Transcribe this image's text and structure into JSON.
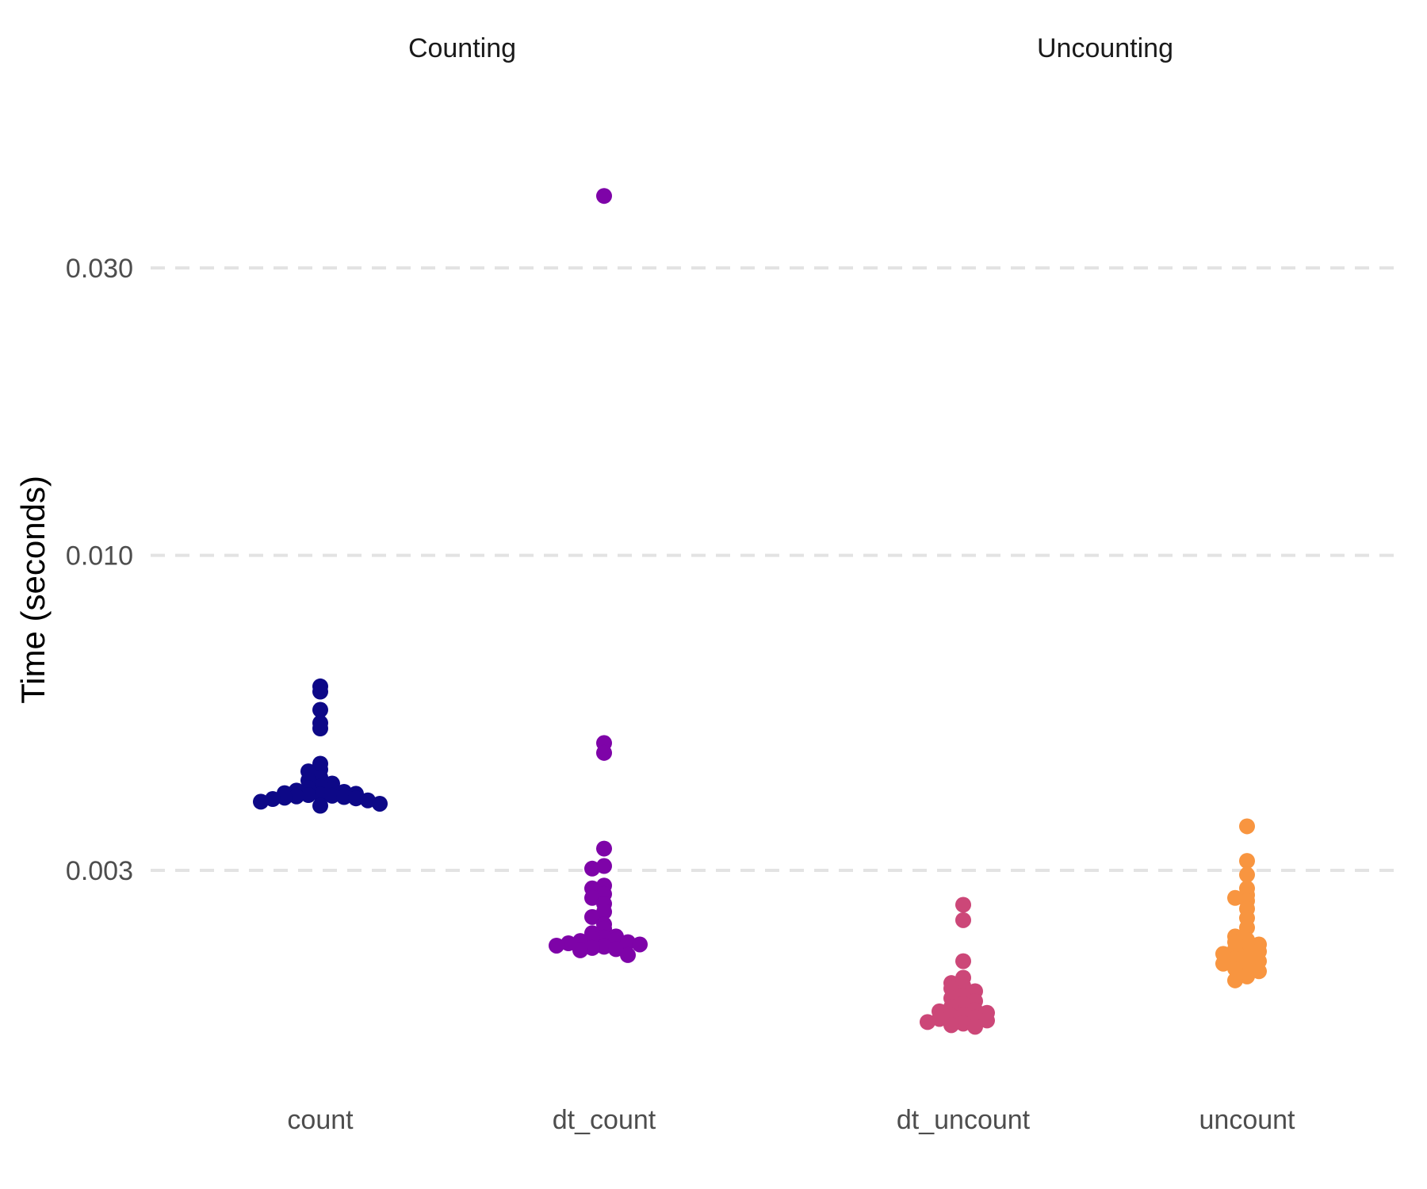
{
  "chart_data": {
    "type": "scatter",
    "ylabel": "Time (seconds)",
    "xlabel": "",
    "y_scale": "log",
    "yticks": [
      0.003,
      0.01,
      0.03
    ],
    "ytick_labels": [
      "0.003",
      "0.010",
      "0.030"
    ],
    "ylim": [
      0.0011,
      0.05
    ],
    "grid": "horizontal-dashed",
    "legend": "none",
    "facets": [
      {
        "title": "Counting",
        "groups": [
          {
            "name": "count",
            "color": "#0d0887",
            "values": [
              0.00606,
              0.00594,
              0.00554,
              0.00527,
              0.00516,
              0.00451,
              0.00441,
              0.00438,
              0.00428,
              0.00423,
              0.00418,
              0.00413,
              0.00411,
              0.00409,
              0.00407,
              0.00405,
              0.00403,
              0.00402,
              0.00401,
              0.004,
              0.00399,
              0.00398,
              0.00397,
              0.00396,
              0.00395,
              0.00394,
              0.00392,
              0.0039,
              0.00387,
              0.00384
            ]
          },
          {
            "name": "dt_count",
            "color": "#7e03a8",
            "values": [
              0.0395,
              0.00488,
              0.0047,
              0.00326,
              0.00305,
              0.00302,
              0.00283,
              0.0028,
              0.00274,
              0.0027,
              0.00264,
              0.00256,
              0.00251,
              0.00244,
              0.0024,
              0.00236,
              0.00233,
              0.00232,
              0.00231,
              0.0023,
              0.00229,
              0.00228,
              0.00227,
              0.00226,
              0.00225,
              0.00224,
              0.00223,
              0.00222,
              0.00221,
              0.00217
            ]
          }
        ]
      },
      {
        "title": "Uncounting",
        "groups": [
          {
            "name": "dt_uncount",
            "color": "#cc4778",
            "values": [
              0.00263,
              0.00248,
              0.00212,
              0.00199,
              0.00195,
              0.00193,
              0.00191,
              0.00189,
              0.00186,
              0.00184,
              0.00182,
              0.0018,
              0.00178,
              0.00176,
              0.00175,
              0.00174,
              0.00173,
              0.00172,
              0.00171,
              0.0017,
              0.00169,
              0.00168,
              0.00167,
              0.00166,
              0.00165
            ]
          },
          {
            "name": "uncount",
            "color": "#f89540",
            "values": [
              0.00355,
              0.00311,
              0.00295,
              0.0028,
              0.00273,
              0.0027,
              0.00267,
              0.00259,
              0.0025,
              0.00241,
              0.00233,
              0.0023,
              0.00228,
              0.00226,
              0.00224,
              0.00222,
              0.0022,
              0.00218,
              0.00216,
              0.00214,
              0.00212,
              0.0021,
              0.00208,
              0.00206,
              0.00204,
              0.002,
              0.00197
            ]
          }
        ]
      }
    ]
  }
}
